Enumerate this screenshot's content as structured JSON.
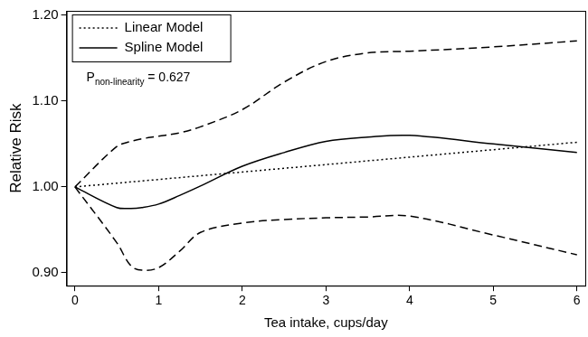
{
  "chart_data": {
    "type": "line",
    "x_label": "Tea intake, cups/day",
    "y_label": "Relative Risk",
    "xlim": [
      -0.1,
      6.1
    ],
    "xticks": [
      0,
      1,
      2,
      3,
      4,
      5,
      6
    ],
    "ylim": [
      0.885,
      1.205
    ],
    "yticks": [
      {
        "value": 0.9,
        "label": "0.90"
      },
      {
        "value": 1.0,
        "label": "1.00"
      },
      {
        "value": 1.1,
        "label": "1.10"
      },
      {
        "value": 1.2,
        "label": "1.20"
      }
    ],
    "grid": false,
    "legend": "upper left",
    "annotation": {
      "text": "P",
      "subscript": "non-linearity",
      "suffix": " = 0.627"
    },
    "series": [
      {
        "name": "Linear Model",
        "color": "#000000",
        "line_style": "dotted",
        "x": [
          0,
          6
        ],
        "values": [
          1.0,
          1.052
        ]
      },
      {
        "name": "Spline Model",
        "color": "#000000",
        "line_style": "solid",
        "x": [
          0,
          0.5,
          0.67,
          0.8,
          1,
          1.25,
          1.5,
          2,
          2.5,
          3,
          3.5,
          4,
          5,
          6
        ],
        "values": [
          1.0,
          0.976,
          0.975,
          0.976,
          0.98,
          0.99,
          1.001,
          1.024,
          1.04,
          1.053,
          1.058,
          1.06,
          1.05,
          1.04
        ],
        "ci_upper": [
          1.0,
          1.047,
          1.053,
          1.056,
          1.059,
          1.063,
          1.07,
          1.09,
          1.122,
          1.146,
          1.156,
          1.158,
          1.163,
          1.17
        ],
        "ci_lower": [
          1.0,
          0.935,
          0.908,
          0.903,
          0.906,
          0.925,
          0.947,
          0.958,
          0.962,
          0.964,
          0.965,
          0.966,
          0.944,
          0.921
        ]
      }
    ]
  }
}
